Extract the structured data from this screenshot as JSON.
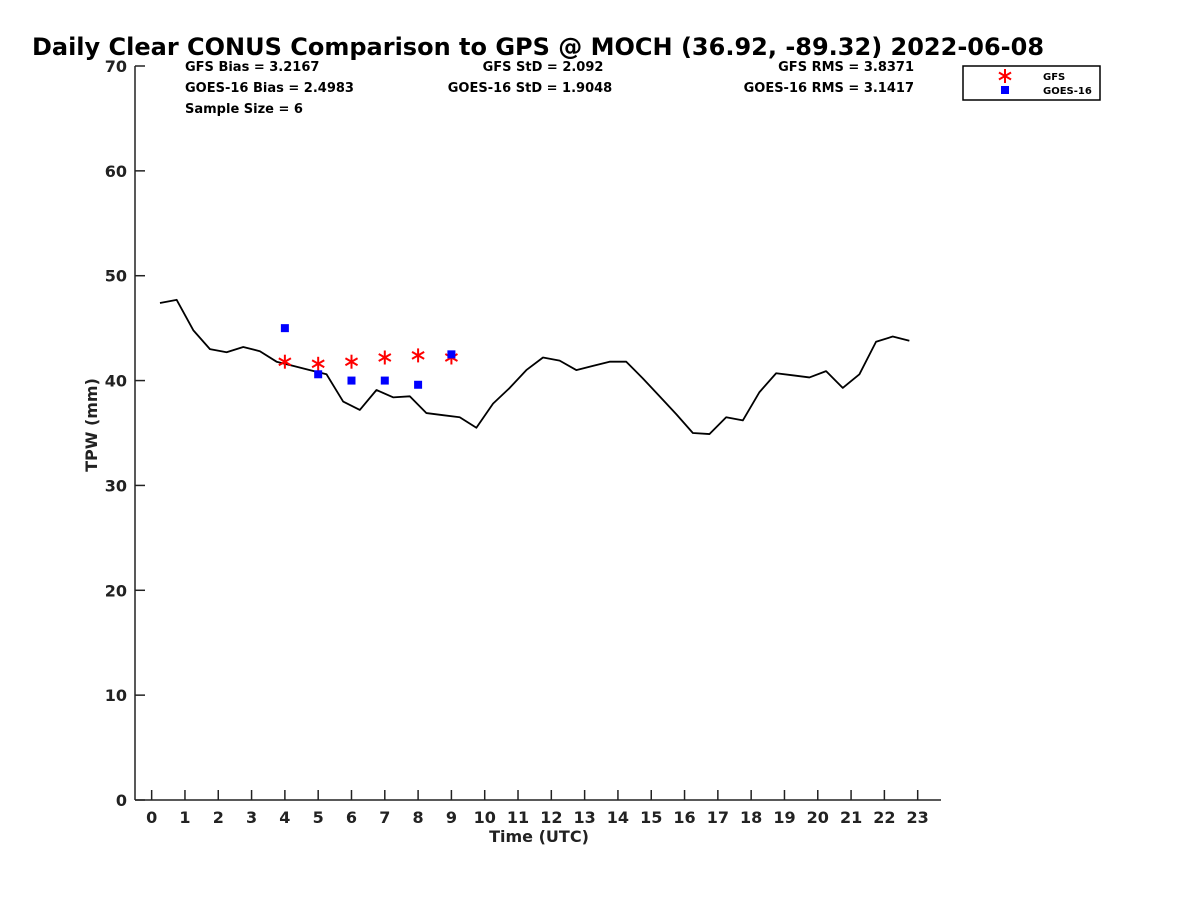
{
  "chart_data": {
    "type": "scatter",
    "title": "Daily Clear CONUS Comparison to GPS @ MOCH (36.92, -89.32) 2022-06-08",
    "xlabel": "Time (UTC)",
    "ylabel": "TPW (mm)",
    "xlim": [
      -0.5,
      23.7
    ],
    "ylim": [
      0,
      70
    ],
    "x_ticks": [
      "0",
      "1",
      "2",
      "3",
      "4",
      "5",
      "6",
      "7",
      "8",
      "9",
      "10",
      "11",
      "12",
      "13",
      "14",
      "15",
      "16",
      "17",
      "18",
      "19",
      "20",
      "21",
      "22",
      "23"
    ],
    "y_ticks": [
      "0",
      "10",
      "20",
      "30",
      "40",
      "50",
      "60",
      "70"
    ],
    "grid": false,
    "legend_position": "top-right",
    "stats": {
      "gfs_bias": "GFS Bias = 3.2167",
      "goes_bias": "GOES-16 Bias = 2.4983",
      "sample_size": "Sample Size = 6",
      "gfs_std": "GFS StD = 2.092",
      "goes_std": "GOES-16 StD = 1.9048",
      "gfs_rms": "GFS RMS = 3.8371",
      "goes_rms": "GOES-16 RMS = 3.1417"
    },
    "series": [
      {
        "kind": "line",
        "color": "#000000",
        "x": [
          0.25,
          0.75,
          1.25,
          1.75,
          2.25,
          2.75,
          3.25,
          3.75,
          4.25,
          4.75,
          5.25,
          5.75,
          6.25,
          6.75,
          7.25,
          7.75,
          8.25,
          8.75,
          9.25,
          9.75,
          10.25,
          10.75,
          11.25,
          11.75,
          12.25,
          12.75,
          13.25,
          13.75,
          14.25,
          14.75,
          15.25,
          15.75,
          16.25,
          16.75,
          17.25,
          17.75,
          18.25,
          18.75,
          19.25,
          19.75,
          20.25,
          20.75,
          21.25,
          21.75,
          22.25,
          22.75
        ],
        "values": [
          47.4,
          47.7,
          44.8,
          43.0,
          42.7,
          43.2,
          42.8,
          41.8,
          41.4,
          41.0,
          40.6,
          38.0,
          37.2,
          39.1,
          38.4,
          38.5,
          36.9,
          36.7,
          36.5,
          35.5,
          37.8,
          39.3,
          41.0,
          42.2,
          41.9,
          41.0,
          41.4,
          41.8,
          41.8,
          40.2,
          38.5,
          36.8,
          35.0,
          34.9,
          36.5,
          36.2,
          38.9,
          40.7,
          40.5,
          40.3,
          40.9,
          39.3,
          40.6,
          43.7,
          44.2,
          43.8
        ]
      },
      {
        "name": "GFS",
        "kind": "marker",
        "marker": "asterisk",
        "color": "#ff0000",
        "x": [
          4,
          5,
          6,
          7,
          8,
          9
        ],
        "values": [
          41.8,
          41.6,
          41.8,
          42.2,
          42.4,
          42.2
        ]
      },
      {
        "name": "GOES-16",
        "kind": "marker",
        "marker": "square",
        "color": "#0000ff",
        "x": [
          4,
          5,
          6,
          7,
          8,
          9
        ],
        "values": [
          45.0,
          40.6,
          40.0,
          40.0,
          39.6,
          42.5
        ]
      }
    ]
  }
}
